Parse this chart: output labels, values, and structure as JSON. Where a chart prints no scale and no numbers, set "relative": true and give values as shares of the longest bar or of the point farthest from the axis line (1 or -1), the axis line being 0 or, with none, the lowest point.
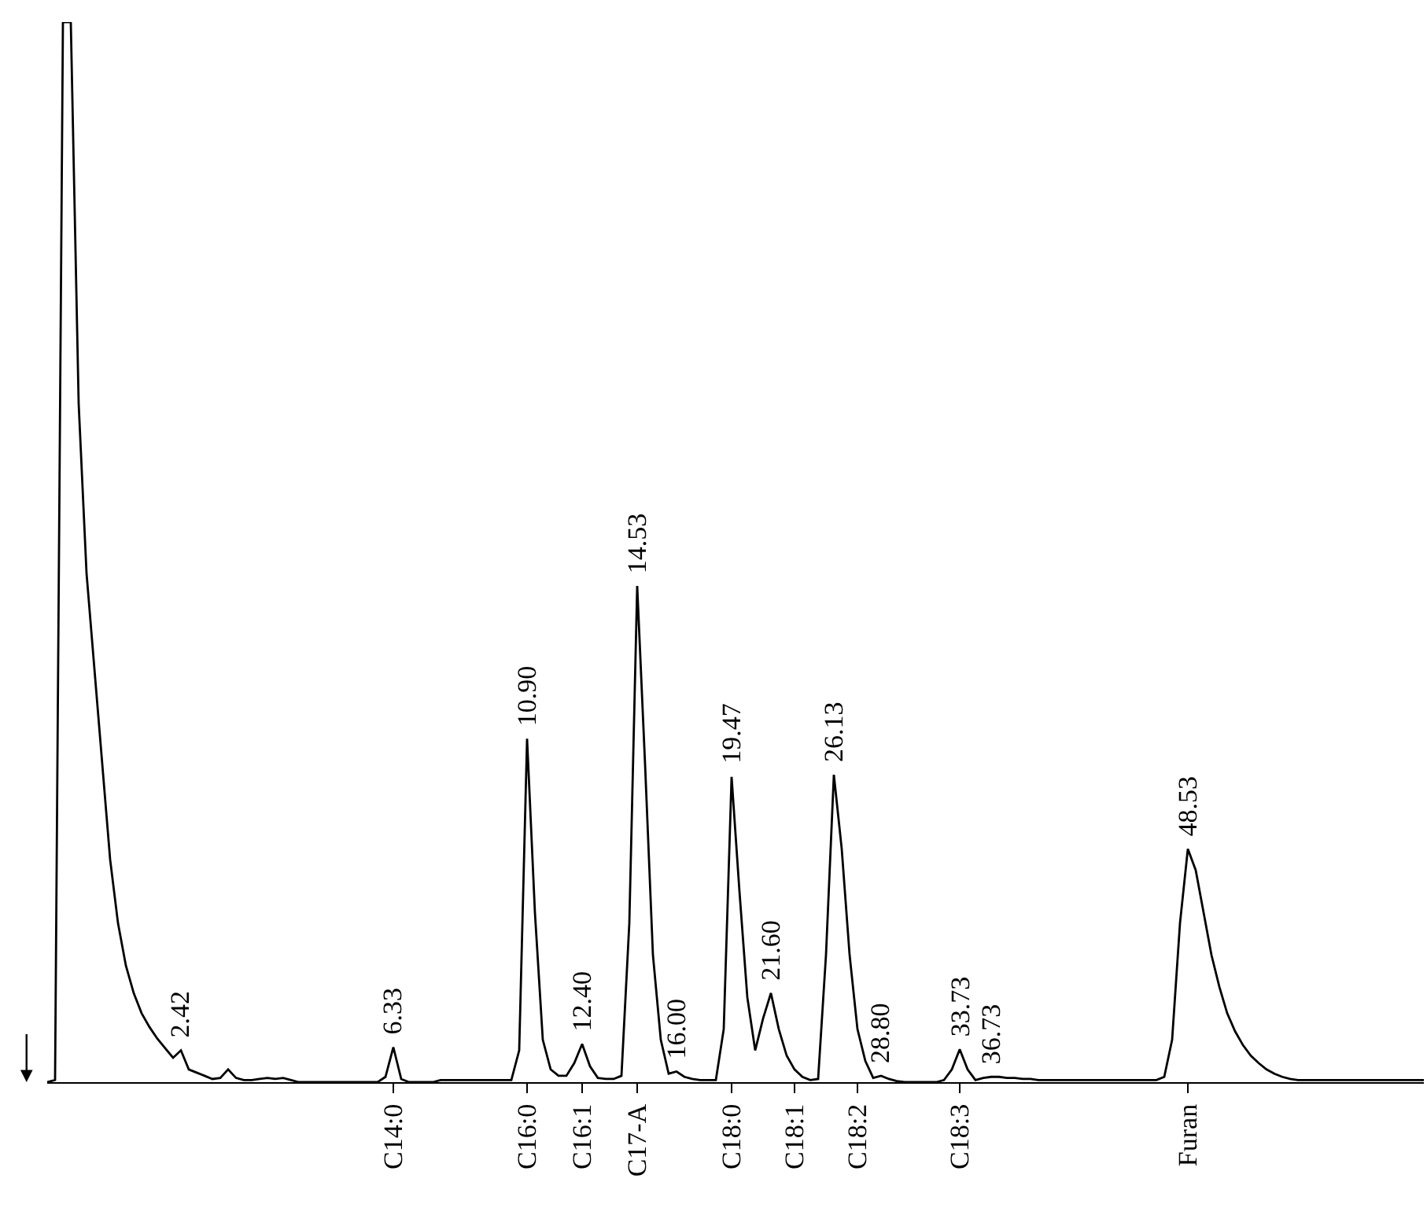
{
  "chart_data": {
    "type": "line",
    "relative": true,
    "color": "#000000",
    "categories": [
      null,
      null,
      null,
      null,
      null,
      null,
      null,
      null,
      null,
      null,
      null,
      null,
      null,
      null,
      null,
      null,
      null,
      null,
      null,
      null,
      null,
      null,
      null,
      null,
      null,
      null,
      null,
      null,
      null,
      null,
      null,
      null,
      null,
      null,
      null,
      null,
      null,
      null,
      null,
      null,
      null,
      null,
      null,
      null,
      "C14:0",
      null,
      null,
      null,
      null,
      null,
      null,
      null,
      null,
      null,
      null,
      null,
      null,
      null,
      null,
      null,
      null,
      "C16:0",
      null,
      null,
      null,
      null,
      null,
      null,
      "C16:1",
      null,
      null,
      null,
      null,
      null,
      null,
      "C17-A",
      null,
      null,
      null,
      null,
      null,
      null,
      null,
      null,
      null,
      null,
      null,
      "C18:0",
      null,
      null,
      null,
      null,
      null,
      null,
      null,
      "C18:1",
      null,
      null,
      null,
      null,
      null,
      null,
      null,
      "C18:2",
      null,
      null,
      null,
      null,
      null,
      null,
      null,
      null,
      null,
      null,
      null,
      null,
      "C18:3",
      null,
      null,
      null,
      null,
      null,
      null,
      null,
      null,
      null,
      null,
      null,
      null,
      null,
      null,
      null,
      null,
      null,
      null,
      null,
      null,
      null,
      null,
      null,
      null,
      null,
      null,
      null,
      null,
      "Furan",
      null,
      null,
      null,
      null,
      null,
      null,
      null,
      null,
      null,
      null,
      null,
      null,
      null,
      null,
      null,
      null,
      null,
      null,
      null,
      null,
      null,
      null,
      null,
      null,
      null,
      null,
      null,
      null,
      null,
      null
    ],
    "values": [
      0,
      0.002,
      1,
      1,
      0.64,
      0.48,
      0.39,
      0.3,
      0.21,
      0.15,
      0.11,
      0.084,
      0.065,
      0.052,
      0.041,
      0.032,
      0.023,
      0.03,
      0.012,
      0.009,
      0.006,
      0.003,
      0.004,
      0.012,
      0.004,
      0.002,
      0.002,
      0.003,
      0.004,
      0.003,
      0.004,
      0.002,
      0,
      0,
      0,
      0,
      0,
      0,
      0,
      0,
      0,
      0,
      0,
      0.005,
      0.033,
      0.003,
      0,
      0,
      0,
      0,
      0.002,
      0.002,
      0.002,
      0.002,
      0.002,
      0.002,
      0.002,
      0.002,
      0.002,
      0.002,
      0.03,
      0.324,
      0.16,
      0.04,
      0.012,
      0.006,
      0.006,
      0.018,
      0.036,
      0.015,
      0.004,
      0.003,
      0.003,
      0.006,
      0.15,
      0.468,
      0.3,
      0.12,
      0.04,
      0.008,
      0.01,
      0.005,
      0.003,
      0.002,
      0.002,
      0.002,
      0.05,
      0.288,
      0.18,
      0.08,
      0.03,
      0.06,
      0.084,
      0.05,
      0.025,
      0.012,
      0.005,
      0.002,
      0.003,
      0.12,
      0.29,
      0.22,
      0.12,
      0.05,
      0.02,
      0.004,
      0.006,
      0.003,
      0.001,
      0,
      0,
      0,
      0,
      0,
      0.002,
      0.012,
      0.031,
      0.012,
      0.002,
      0.004,
      0.005,
      0.005,
      0.004,
      0.004,
      0.003,
      0.003,
      0.002,
      0.002,
      0.002,
      0.002,
      0.002,
      0.002,
      0.002,
      0.002,
      0.002,
      0.002,
      0.002,
      0.002,
      0.002,
      0.002,
      0.002,
      0.002,
      0.005,
      0.04,
      0.15,
      0.22,
      0.2,
      0.16,
      0.12,
      0.09,
      0.065,
      0.048,
      0.035,
      0.025,
      0.018,
      0.012,
      0.008,
      0.005,
      0.003,
      0.002,
      0.002,
      0.002,
      0.002,
      0.002,
      0.002,
      0.002,
      0.002,
      0.002,
      0.002,
      0.002,
      0.002,
      0.002,
      0.002,
      0.002,
      0.002,
      0.002
    ],
    "annotations": [
      {
        "text": "2.42",
        "y": 0.03
      },
      {
        "text": "6.33",
        "x": "C14:0",
        "y": 0.033
      },
      {
        "text": "10.90",
        "x": "C16:0",
        "y": 0.324
      },
      {
        "text": "12.40",
        "x": "C16:1",
        "y": 0.036
      },
      {
        "text": "14.53",
        "x": "C17-A",
        "y": 0.468
      },
      {
        "text": "16.00",
        "y": 0.01
      },
      {
        "text": "19.47",
        "x": "C18:0",
        "y": 0.288
      },
      {
        "text": "21.60",
        "y": 0.084
      },
      {
        "text": "26.13",
        "y": 0.29
      },
      {
        "text": "28.80",
        "y": 0.006
      },
      {
        "text": "33.73",
        "x": "C18:3",
        "y": 0.031
      },
      {
        "text": "36.73",
        "y": 0.005
      },
      {
        "text": "48.53",
        "x": "Furan",
        "y": 0.22
      }
    ]
  }
}
